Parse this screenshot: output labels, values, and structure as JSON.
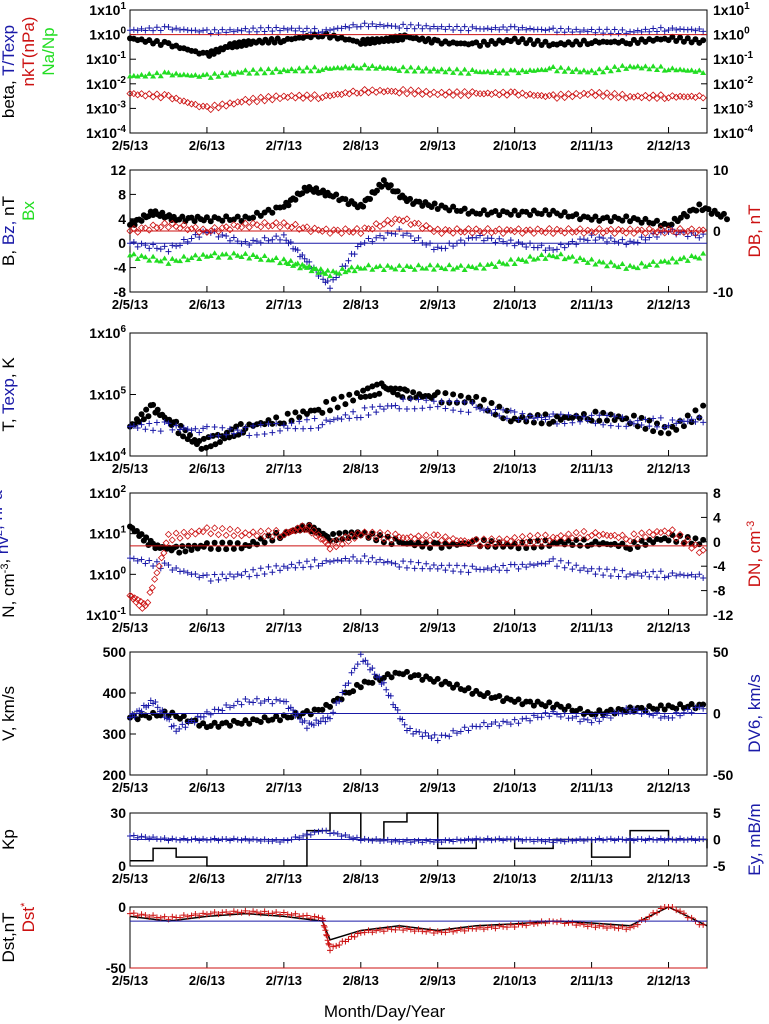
{
  "figure": {
    "x_axis_label": "Month/Day/Year",
    "x_tick_labels": [
      "2/5/13",
      "2/6/13",
      "2/7/13",
      "2/8/13",
      "2/9/13",
      "2/10/13",
      "2/11/13",
      "2/12/13"
    ]
  },
  "colors": {
    "black": "#000000",
    "blue": "#1a1aa8",
    "red": "#cc1111",
    "green": "#22dd22"
  },
  "chart_data": [
    {
      "panel": "beta",
      "type": "scatter",
      "log_scale": true,
      "y_ticks": [
        "1x10",
        "1x10",
        "1x10",
        "1x10",
        "1x10",
        "1x10"
      ],
      "y_tick_exponents": [
        "1",
        "0",
        "-1",
        "-2",
        "-3",
        "-4"
      ],
      "ylabel_parts": [
        {
          "text": "beta, ",
          "color": "#000000"
        },
        {
          "text": "T/Texp",
          "color": "#1a1aa8"
        }
      ],
      "ylabel2_parts": [
        {
          "text": "nkT(nPa)",
          "color": "#cc1111"
        }
      ],
      "ylabel3_parts": [
        {
          "text": "Na/Np",
          "color": "#22dd22"
        }
      ],
      "series": [
        {
          "name": "beta",
          "color": "#000000",
          "marker": "dot",
          "x": [
            0,
            0.5,
            1,
            1.3,
            1.6,
            2,
            2.5,
            3,
            3.3,
            3.6,
            4,
            4.5,
            5,
            5.5,
            6,
            6.5,
            7,
            7.5
          ],
          "y": [
            0.7,
            0.4,
            0.15,
            0.35,
            0.5,
            0.6,
            1.0,
            0.5,
            0.6,
            0.8,
            0.5,
            0.4,
            0.6,
            0.4,
            0.5,
            0.5,
            0.7,
            0.5
          ]
        },
        {
          "name": "T/Texp",
          "color": "#1a1aa8",
          "marker": "plus",
          "x": [
            0,
            0.5,
            1,
            1.5,
            2,
            2.5,
            3,
            3.5,
            4,
            4.5,
            5,
            5.5,
            6,
            6.5,
            7,
            7.5
          ],
          "y": [
            1.5,
            1.8,
            1.3,
            1.5,
            1.7,
            1.4,
            2.5,
            2.2,
            1.9,
            1.7,
            1.8,
            1.5,
            1.4,
            1.3,
            1.7,
            1.5
          ]
        },
        {
          "name": "Na/Np",
          "color": "#22dd22",
          "marker": "triangle",
          "x": [
            0,
            0.5,
            1,
            1.5,
            2,
            2.5,
            3,
            3.5,
            4,
            4.5,
            5,
            5.5,
            6,
            6.5,
            7,
            7.5
          ],
          "y": [
            0.02,
            0.025,
            0.02,
            0.03,
            0.035,
            0.04,
            0.05,
            0.04,
            0.035,
            0.03,
            0.03,
            0.04,
            0.03,
            0.05,
            0.04,
            0.03
          ]
        },
        {
          "name": "nkT",
          "color": "#cc1111",
          "marker": "diamond",
          "x": [
            0,
            0.5,
            1,
            1.5,
            2,
            2.5,
            3,
            3.5,
            4,
            4.5,
            5,
            5.5,
            6,
            6.5,
            7,
            7.5
          ],
          "y": [
            0.004,
            0.003,
            0.001,
            0.002,
            0.003,
            0.003,
            0.005,
            0.005,
            0.004,
            0.004,
            0.004,
            0.003,
            0.004,
            0.003,
            0.003,
            0.003
          ]
        }
      ],
      "right_ticks": [
        "1x10",
        "1x10",
        "1x10",
        "1x10",
        "1x10",
        "1x10"
      ],
      "right_tick_exponents": [
        "1",
        "0",
        "-1",
        "-2",
        "-3",
        "-4"
      ]
    },
    {
      "panel": "B",
      "type": "scatter",
      "y_ticks": [
        "12",
        "8",
        "4",
        "0",
        "-4",
        "-8"
      ],
      "right_ticks": [
        "10",
        "0",
        "-10"
      ],
      "ylabel_parts": [
        {
          "text": "B, ",
          "color": "#000000"
        },
        {
          "text": "Bz, ",
          "color": "#1a1aa8"
        },
        {
          "text": "nT",
          "color": "#000000"
        }
      ],
      "ylabel2_parts": [
        {
          "text": "Bx",
          "color": "#22dd22"
        }
      ],
      "right_label": "DB, nT",
      "series": [
        {
          "name": "B",
          "color": "#000000",
          "marker": "dot",
          "x": [
            0,
            0.3,
            0.6,
            1,
            1.5,
            2,
            2.3,
            2.6,
            3,
            3.3,
            3.6,
            4,
            4.5,
            5,
            5.5,
            6,
            6.5,
            7,
            7.4,
            7.8
          ],
          "y": [
            3,
            5,
            4,
            4,
            4,
            6,
            9,
            8,
            6,
            10,
            7,
            6,
            5,
            5,
            5,
            4,
            4,
            3,
            6,
            4
          ]
        },
        {
          "name": "Bz",
          "color": "#1a1aa8",
          "marker": "plus",
          "x": [
            0,
            0.5,
            1,
            1.5,
            2,
            2.3,
            2.6,
            3,
            3.5,
            4,
            4.5,
            5,
            5.5,
            6,
            6.5,
            7,
            7.5
          ],
          "y": [
            0,
            -1,
            2,
            0,
            1,
            -3,
            -7,
            0,
            2,
            -1,
            1,
            0,
            -1,
            1,
            0,
            2,
            1
          ]
        },
        {
          "name": "Bx",
          "color": "#22dd22",
          "marker": "triangle",
          "x": [
            0,
            0.5,
            1,
            1.5,
            2,
            2.3,
            2.6,
            3,
            3.5,
            4,
            4.5,
            5,
            5.5,
            6,
            6.5,
            7,
            7.5
          ],
          "y": [
            -2,
            -3,
            -2,
            -2,
            -3,
            -4,
            -5,
            -4,
            -4,
            -4,
            -4,
            -3,
            -2,
            -3,
            -4,
            -3,
            -2
          ]
        },
        {
          "name": "DB",
          "color": "#cc1111",
          "marker": "diamond",
          "x": [
            0,
            0.5,
            1,
            1.5,
            2,
            2.5,
            3,
            3.5,
            4,
            4.5,
            5,
            5.5,
            6,
            6.5,
            7,
            7.5
          ],
          "y": [
            2,
            3,
            2,
            3,
            3,
            2,
            2,
            4,
            2,
            2,
            2,
            2,
            2,
            2,
            2,
            2
          ]
        }
      ]
    },
    {
      "panel": "T",
      "type": "scatter",
      "log_scale": true,
      "y_ticks": [
        "1x10",
        "1x10",
        "1x10"
      ],
      "y_tick_exponents": [
        "6",
        "5",
        "4"
      ],
      "ylabel_parts": [
        {
          "text": "T, ",
          "color": "#000000"
        },
        {
          "text": "Texp",
          "color": "#1a1aa8"
        },
        {
          "text": ", K",
          "color": "#000000"
        }
      ],
      "series": [
        {
          "name": "T",
          "color": "#000000",
          "marker": "dot",
          "x": [
            0,
            0.3,
            0.6,
            0.9,
            1.2,
            1.5,
            2,
            2.5,
            3,
            3.3,
            3.6,
            4,
            4.5,
            5,
            5.5,
            6,
            6.5,
            7,
            7.5
          ],
          "y": [
            30000,
            60000,
            30000,
            15000,
            20000,
            30000,
            40000,
            60000,
            100000,
            130000,
            100000,
            90000,
            80000,
            40000,
            40000,
            45000,
            40000,
            25000,
            60000
          ]
        },
        {
          "name": "Texp",
          "color": "#1a1aa8",
          "marker": "plus",
          "x": [
            0,
            0.5,
            1,
            1.5,
            2,
            2.5,
            3,
            3.5,
            4,
            4.5,
            5,
            5.5,
            6,
            6.5,
            7,
            7.5
          ],
          "y": [
            30000,
            30000,
            25000,
            25000,
            30000,
            35000,
            50000,
            70000,
            70000,
            60000,
            45000,
            40000,
            40000,
            35000,
            35000,
            40000
          ]
        }
      ]
    },
    {
      "panel": "N",
      "type": "scatter",
      "log_scale": true,
      "y_ticks": [
        "1x10",
        "1x10",
        "1x10",
        "1x10"
      ],
      "y_tick_exponents": [
        "2",
        "1",
        "0",
        "-1"
      ],
      "right_ticks": [
        "8",
        "4",
        "0",
        "-4",
        "-8",
        "-12"
      ],
      "ylabel_parts": [
        {
          "text": "N, cm",
          "color": "#000000"
        },
        {
          "text": "-3",
          "color": "#000000",
          "sup": true
        },
        {
          "text": ", ",
          "color": "#000000"
        },
        {
          "text": "nv",
          "color": "#1a1aa8"
        },
        {
          "text": "2",
          "color": "#1a1aa8",
          "sup": true
        },
        {
          "text": ", nPa",
          "color": "#1a1aa8"
        }
      ],
      "right_label": "DN, cm",
      "right_label_sup": "-3",
      "series": [
        {
          "name": "N",
          "color": "#000000",
          "marker": "dot",
          "x": [
            0,
            0.3,
            0.6,
            1,
            1.5,
            2,
            2.3,
            2.6,
            3,
            3.5,
            4,
            4.5,
            5,
            5.5,
            6,
            6.5,
            7,
            7.5
          ],
          "y": [
            15,
            5,
            4,
            5,
            5,
            10,
            15,
            8,
            10,
            6,
            5,
            6,
            5,
            6,
            6,
            5,
            8,
            6
          ]
        },
        {
          "name": "nv2",
          "color": "#1a1aa8",
          "marker": "plus",
          "x": [
            0,
            0.5,
            1,
            1.5,
            2,
            2.5,
            3,
            3.5,
            4,
            4.5,
            5,
            5.5,
            6,
            6.5,
            7,
            7.5
          ],
          "y": [
            2.5,
            1.5,
            0.8,
            1,
            1.5,
            2,
            2.5,
            1.8,
            1.5,
            1.3,
            1.5,
            2,
            1.2,
            1,
            1,
            0.9
          ]
        },
        {
          "name": "DN",
          "color": "#cc1111",
          "marker": "diamond",
          "x": [
            0,
            0.2,
            0.5,
            1,
            1.5,
            2,
            2.3,
            2.6,
            3,
            3.5,
            4,
            4.5,
            5,
            5.5,
            6,
            6.5,
            7,
            7.5
          ],
          "y": [
            0.3,
            0.15,
            8,
            12,
            10,
            10,
            15,
            5,
            10,
            8,
            8,
            6,
            7,
            8,
            10,
            8,
            12,
            3
          ]
        }
      ]
    },
    {
      "panel": "V",
      "type": "scatter",
      "y_ticks": [
        "500",
        "400",
        "300",
        "200"
      ],
      "right_ticks": [
        "50",
        "0",
        "-50"
      ],
      "ylabel_parts": [
        {
          "text": "V, km/s",
          "color": "#000000"
        }
      ],
      "right_label": "DV6, km/s",
      "series": [
        {
          "name": "V",
          "color": "#000000",
          "marker": "dot",
          "x": [
            0,
            0.5,
            1,
            1.5,
            2,
            2.5,
            3,
            3.5,
            4,
            4.5,
            5,
            5.5,
            6,
            6.5,
            7,
            7.5
          ],
          "y": [
            340,
            350,
            320,
            330,
            340,
            360,
            420,
            450,
            430,
            400,
            380,
            370,
            350,
            360,
            365,
            370
          ]
        },
        {
          "name": "DV6",
          "color": "#1a1aa8",
          "marker": "plus",
          "x": [
            0,
            0.3,
            0.6,
            1,
            1.5,
            2,
            2.3,
            2.6,
            3,
            3.3,
            3.6,
            4,
            4.5,
            5,
            5.5,
            6,
            6.5,
            7,
            7.5
          ],
          "y": [
            340,
            380,
            310,
            350,
            380,
            380,
            320,
            340,
            490,
            420,
            310,
            290,
            320,
            330,
            350,
            330,
            360,
            340,
            370
          ]
        }
      ]
    },
    {
      "panel": "Kp",
      "type": "line",
      "y_ticks": [
        "30",
        "0"
      ],
      "right_ticks": [
        "5",
        "0",
        "-5"
      ],
      "ylabel_parts": [
        {
          "text": "Kp",
          "color": "#000000"
        }
      ],
      "right_label": "Ey, mB/m",
      "series": [
        {
          "name": "Kp",
          "color": "#000000",
          "marker": "step",
          "x": [
            0,
            0.3,
            0.6,
            1,
            1.5,
            2,
            2.3,
            2.6,
            3,
            3.3,
            3.6,
            4,
            4.5,
            5,
            5.5,
            6,
            6.5,
            7,
            7.5
          ],
          "y": [
            3,
            10,
            5,
            0,
            0,
            0,
            20,
            30,
            15,
            25,
            30,
            10,
            15,
            10,
            15,
            5,
            20,
            15,
            10
          ]
        },
        {
          "name": "Ey",
          "color": "#1a1aa8",
          "marker": "plus",
          "x": [
            0,
            0.5,
            1,
            1.5,
            2,
            2.5,
            3,
            3.5,
            4,
            4.5,
            5,
            5.5,
            6,
            6.5,
            7,
            7.5
          ],
          "y": [
            17,
            15,
            15,
            15,
            14,
            20,
            15,
            14,
            14,
            15,
            15,
            14,
            15,
            15,
            15,
            15
          ]
        }
      ]
    },
    {
      "panel": "Dst",
      "type": "line",
      "y_ticks": [
        "0",
        "-50"
      ],
      "ylabel_parts": [
        {
          "text": "Dst,nT",
          "color": "#000000"
        }
      ],
      "ylabel2_parts": [
        {
          "text": "Dst",
          "color": "#cc1111"
        },
        {
          "text": "*",
          "color": "#cc1111",
          "sup": true
        }
      ],
      "series": [
        {
          "name": "Dst",
          "color": "#000000",
          "marker": "line",
          "x": [
            0,
            0.5,
            1,
            1.5,
            2,
            2.5,
            2.6,
            3,
            3.5,
            4,
            4.5,
            5,
            5.5,
            6,
            6.5,
            7,
            7.5
          ],
          "y": [
            5,
            0,
            5,
            8,
            5,
            0,
            -20,
            -10,
            -5,
            -10,
            -5,
            -3,
            0,
            -2,
            -5,
            15,
            -5
          ]
        },
        {
          "name": "Dst*",
          "color": "#cc1111",
          "marker": "plus",
          "x": [
            0,
            0.5,
            1,
            1.5,
            2,
            2.5,
            2.6,
            3,
            3.5,
            4,
            4.5,
            5,
            5.5,
            6,
            6.5,
            7,
            7.5
          ],
          "y": [
            8,
            3,
            8,
            10,
            8,
            3,
            -30,
            -12,
            -8,
            -12,
            -8,
            -5,
            0,
            -5,
            -8,
            18,
            -8
          ]
        }
      ]
    }
  ]
}
